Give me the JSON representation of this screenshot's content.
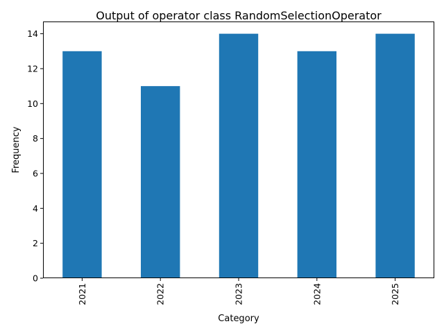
{
  "chart_data": {
    "type": "bar",
    "title": "Output of operator class RandomSelectionOperator",
    "xlabel": "Category",
    "ylabel": "Frequency",
    "categories": [
      "2021",
      "2022",
      "2023",
      "2024",
      "2025"
    ],
    "values": [
      13,
      11,
      14,
      13,
      14
    ],
    "ylim": [
      0,
      14.7
    ],
    "yticks": [
      0,
      2,
      4,
      6,
      8,
      10,
      12,
      14
    ],
    "bar_color": "#1f77b4",
    "grid": false,
    "legend": "none"
  }
}
